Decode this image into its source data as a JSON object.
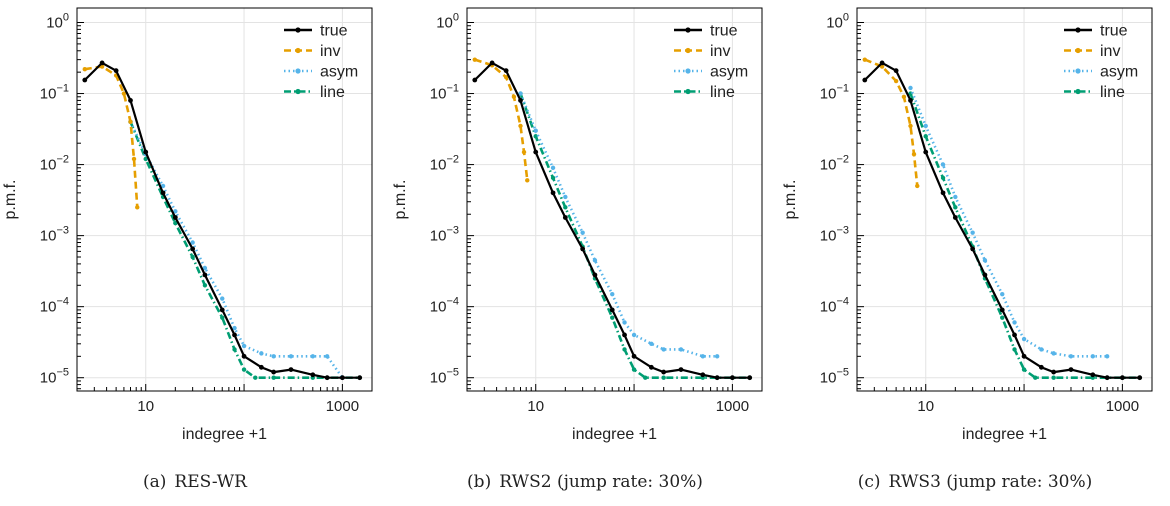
{
  "colors": {
    "true": "#000000",
    "inv": "#E69F00",
    "asym": "#56B4E9",
    "line": "#009E73"
  },
  "chart_data": [
    {
      "type": "line",
      "caption_label": "(a)",
      "caption_text": "RES-WR",
      "xlabel": "indegree +1",
      "ylabel": "p.m.f.",
      "x_scale": "log",
      "y_scale": "log",
      "xlim": [
        2,
        2000
      ],
      "ylim": [
        6.5e-06,
        1.6
      ],
      "x_ticks": [
        10,
        1000
      ],
      "x_tick_labels": [
        "10",
        "1000"
      ],
      "y_ticks": [
        1e-05,
        0.0001,
        0.001,
        0.01,
        0.1,
        1
      ],
      "y_tick_labels": [
        [
          "10",
          "−5"
        ],
        [
          "10",
          "−4"
        ],
        [
          "10",
          "−3"
        ],
        [
          "10",
          "−2"
        ],
        [
          "10",
          "−1"
        ],
        [
          "10",
          "0"
        ]
      ],
      "grid": true,
      "legend_position": "top-right",
      "series": [
        {
          "name": "true",
          "color_key": "true",
          "style": "solid",
          "x": [
            2.4,
            3.6,
            5,
            7,
            10,
            15,
            20,
            30,
            40,
            60,
            80,
            100,
            150,
            200,
            300,
            500,
            700,
            1000,
            1500
          ],
          "y": [
            0.155,
            0.27,
            0.21,
            0.08,
            0.015,
            0.004,
            0.0018,
            0.00065,
            0.00028,
            9e-05,
            4e-05,
            2e-05,
            1.4e-05,
            1.2e-05,
            1.3e-05,
            1.1e-05,
            1e-05,
            1e-05,
            1e-05
          ]
        },
        {
          "name": "inv",
          "color_key": "inv",
          "style": "dashed",
          "x": [
            2.4,
            3.6,
            5,
            6,
            7,
            7.6,
            8.2
          ],
          "y": [
            0.22,
            0.24,
            0.18,
            0.1,
            0.04,
            0.012,
            0.0025
          ]
        },
        {
          "name": "asym",
          "color_key": "asym",
          "style": "dotted",
          "x": [
            7,
            10,
            15,
            20,
            30,
            40,
            60,
            80,
            100,
            150,
            200,
            300,
            500,
            700,
            1000
          ],
          "y": [
            0.04,
            0.014,
            0.005,
            0.0022,
            0.0008,
            0.00035,
            0.00013,
            5e-05,
            2.8e-05,
            2.2e-05,
            2e-05,
            2e-05,
            2e-05,
            2e-05,
            1e-05
          ]
        },
        {
          "name": "line",
          "color_key": "line",
          "style": "dashdot",
          "x": [
            7,
            10,
            15,
            20,
            30,
            40,
            60,
            80,
            100,
            130,
            200,
            500,
            1000,
            1500
          ],
          "y": [
            0.04,
            0.012,
            0.0035,
            0.0015,
            0.0005,
            0.0002,
            7e-05,
            2.5e-05,
            1.3e-05,
            1e-05,
            1e-05,
            1e-05,
            1e-05,
            1e-05
          ]
        }
      ]
    },
    {
      "type": "line",
      "caption_label": "(b)",
      "caption_text": "RWS2 (jump rate: 30%)",
      "xlabel": "indegree +1",
      "ylabel": "p.m.f.",
      "x_scale": "log",
      "y_scale": "log",
      "xlim": [
        2,
        2000
      ],
      "ylim": [
        6.5e-06,
        1.6
      ],
      "x_ticks": [
        10,
        1000
      ],
      "x_tick_labels": [
        "10",
        "1000"
      ],
      "y_ticks": [
        1e-05,
        0.0001,
        0.001,
        0.01,
        0.1,
        1
      ],
      "y_tick_labels": [
        [
          "10",
          "−5"
        ],
        [
          "10",
          "−4"
        ],
        [
          "10",
          "−3"
        ],
        [
          "10",
          "−2"
        ],
        [
          "10",
          "−1"
        ],
        [
          "10",
          "0"
        ]
      ],
      "grid": true,
      "legend_position": "top-right",
      "series": [
        {
          "name": "true",
          "color_key": "true",
          "style": "solid",
          "x": [
            2.4,
            3.6,
            5,
            7,
            10,
            15,
            20,
            30,
            40,
            60,
            80,
            100,
            150,
            200,
            300,
            500,
            700,
            1000,
            1500
          ],
          "y": [
            0.155,
            0.27,
            0.21,
            0.08,
            0.015,
            0.004,
            0.0018,
            0.00065,
            0.00028,
            9e-05,
            4e-05,
            2e-05,
            1.4e-05,
            1.2e-05,
            1.3e-05,
            1.1e-05,
            1e-05,
            1e-05,
            1e-05
          ]
        },
        {
          "name": "inv",
          "color_key": "inv",
          "style": "dashed",
          "x": [
            2.4,
            3.6,
            5,
            6,
            7,
            7.6,
            8.2
          ],
          "y": [
            0.3,
            0.25,
            0.17,
            0.09,
            0.035,
            0.015,
            0.006
          ]
        },
        {
          "name": "asym",
          "color_key": "asym",
          "style": "dotted",
          "x": [
            7,
            10,
            15,
            20,
            30,
            40,
            60,
            80,
            100,
            150,
            200,
            300,
            500,
            700
          ],
          "y": [
            0.1,
            0.03,
            0.009,
            0.0035,
            0.0011,
            0.00045,
            0.00015,
            6e-05,
            4e-05,
            3e-05,
            2.5e-05,
            2.5e-05,
            2e-05,
            2e-05
          ]
        },
        {
          "name": "line",
          "color_key": "line",
          "style": "dashdot",
          "x": [
            7,
            10,
            15,
            20,
            30,
            40,
            60,
            80,
            100,
            130,
            200,
            500,
            1000,
            1500
          ],
          "y": [
            0.1,
            0.025,
            0.0065,
            0.0025,
            0.0007,
            0.00025,
            7e-05,
            2.5e-05,
            1.3e-05,
            1e-05,
            1e-05,
            1e-05,
            1e-05,
            1e-05
          ]
        }
      ]
    },
    {
      "type": "line",
      "caption_label": "(c)",
      "caption_text": "RWS3 (jump rate: 30%)",
      "xlabel": "indegree +1",
      "ylabel": "p.m.f.",
      "x_scale": "log",
      "y_scale": "log",
      "xlim": [
        2,
        2000
      ],
      "ylim": [
        6.5e-06,
        1.6
      ],
      "x_ticks": [
        10,
        1000
      ],
      "x_tick_labels": [
        "10",
        "1000"
      ],
      "y_ticks": [
        1e-05,
        0.0001,
        0.001,
        0.01,
        0.1,
        1
      ],
      "y_tick_labels": [
        [
          "10",
          "−5"
        ],
        [
          "10",
          "−4"
        ],
        [
          "10",
          "−3"
        ],
        [
          "10",
          "−2"
        ],
        [
          "10",
          "−1"
        ],
        [
          "10",
          "0"
        ]
      ],
      "grid": true,
      "legend_position": "top-right",
      "series": [
        {
          "name": "true",
          "color_key": "true",
          "style": "solid",
          "x": [
            2.4,
            3.6,
            5,
            7,
            10,
            15,
            20,
            30,
            40,
            60,
            80,
            100,
            150,
            200,
            300,
            500,
            700,
            1000,
            1500
          ],
          "y": [
            0.155,
            0.27,
            0.21,
            0.08,
            0.015,
            0.004,
            0.0018,
            0.00065,
            0.00028,
            9e-05,
            4e-05,
            2e-05,
            1.4e-05,
            1.2e-05,
            1.3e-05,
            1.1e-05,
            1e-05,
            1e-05,
            1e-05
          ]
        },
        {
          "name": "inv",
          "color_key": "inv",
          "style": "dashed",
          "x": [
            2.4,
            3.6,
            5,
            6,
            7,
            7.6,
            8.2
          ],
          "y": [
            0.3,
            0.24,
            0.15,
            0.09,
            0.035,
            0.014,
            0.005
          ]
        },
        {
          "name": "asym",
          "color_key": "asym",
          "style": "dotted",
          "x": [
            7,
            10,
            15,
            20,
            30,
            40,
            60,
            80,
            100,
            150,
            200,
            300,
            500,
            700
          ],
          "y": [
            0.12,
            0.035,
            0.01,
            0.0035,
            0.0011,
            0.00045,
            0.00015,
            6e-05,
            3.5e-05,
            2.5e-05,
            2.2e-05,
            2e-05,
            2e-05,
            2e-05
          ]
        },
        {
          "name": "line",
          "color_key": "line",
          "style": "dashdot",
          "x": [
            7,
            10,
            15,
            20,
            30,
            40,
            60,
            80,
            100,
            130,
            200,
            500,
            1000,
            1500
          ],
          "y": [
            0.1,
            0.025,
            0.0065,
            0.0025,
            0.0007,
            0.00025,
            7e-05,
            2.5e-05,
            1.3e-05,
            1e-05,
            1e-05,
            1e-05,
            1e-05,
            1e-05
          ]
        }
      ]
    }
  ]
}
